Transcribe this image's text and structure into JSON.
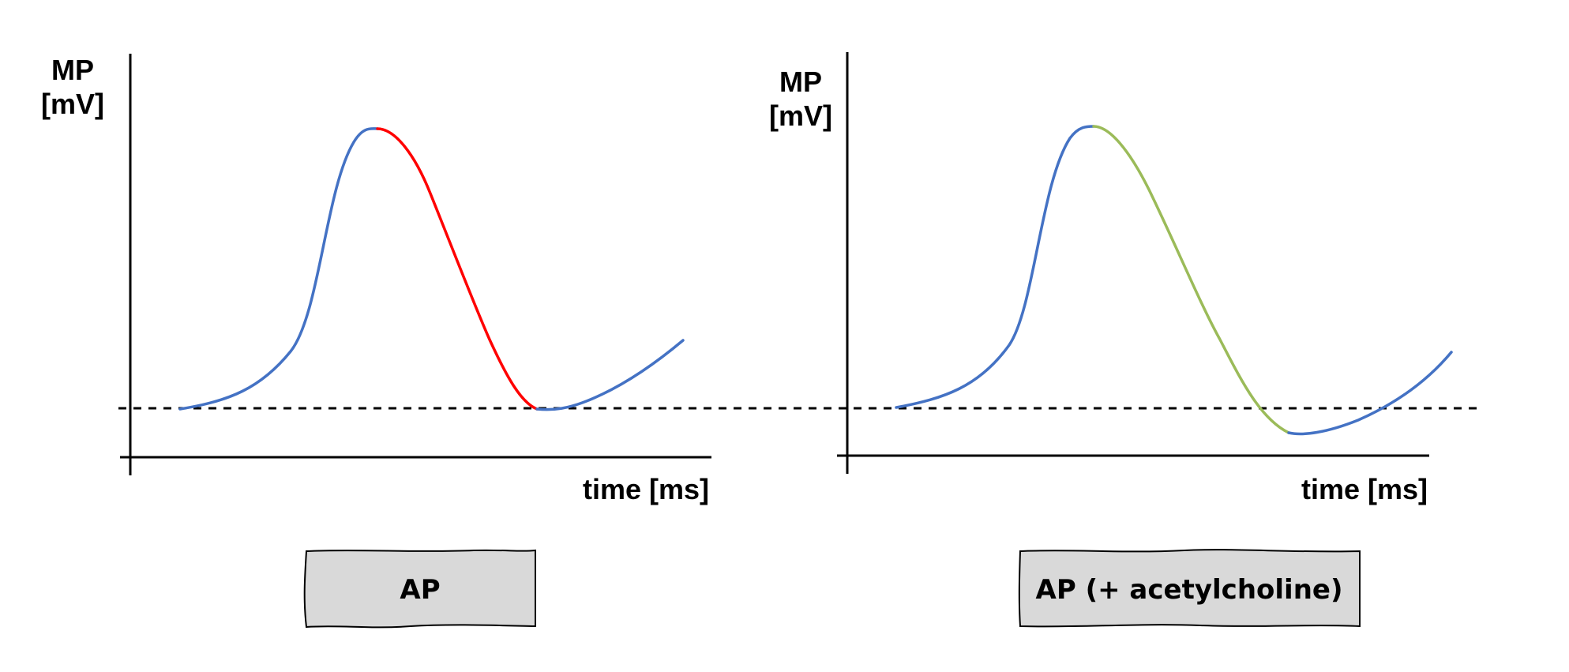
{
  "colors": {
    "baseline_curve": "#4472C4",
    "repolarization_ap": "#FF0000",
    "repolarization_ach": "#9BBB59",
    "box_fill": "#D9D9D9",
    "axis": "#000000"
  },
  "panels": [
    {
      "id": "ap",
      "y_label_line1": "MP",
      "y_label_line2": "[mV]",
      "x_label": "time [ms]",
      "box_label": "AP",
      "repolarization_color": "#FF0000"
    },
    {
      "id": "ap-ach",
      "y_label_line1": "MP",
      "y_label_line2": "[mV]",
      "x_label": "time [ms]",
      "box_label": "AP (+ acetylcholine)",
      "repolarization_color": "#9BBB59"
    }
  ]
}
